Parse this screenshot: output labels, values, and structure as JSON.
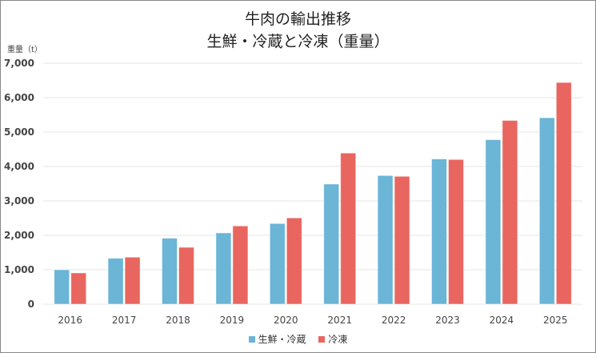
{
  "chart_data": {
    "type": "bar",
    "title": "牛肉の輸出推移",
    "subtitle": "生鮮・冷蔵と冷凍（重量）",
    "ylabel": "重量（t）",
    "xlabel": "",
    "categories": [
      "2016",
      "2017",
      "2018",
      "2019",
      "2020",
      "2021",
      "2022",
      "2023",
      "2024",
      "2025"
    ],
    "series": [
      {
        "name": "生鮮・冷蔵",
        "color": "#6bb5d6",
        "values": [
          1000,
          1334,
          1916,
          2071,
          2343,
          3489,
          3737,
          4219,
          4779,
          5416
        ]
      },
      {
        "name": "冷凍",
        "color": "#e8665f",
        "values": [
          908,
          1365,
          1652,
          2273,
          2506,
          4390,
          3714,
          4203,
          5338,
          6441
        ]
      }
    ],
    "ylim": [
      0,
      7000
    ],
    "yticks": [
      "0",
      "1,000",
      "2,000",
      "3,000",
      "4,000",
      "5,000",
      "6,000",
      "7,000"
    ],
    "grid": true,
    "legend": "bottom"
  }
}
